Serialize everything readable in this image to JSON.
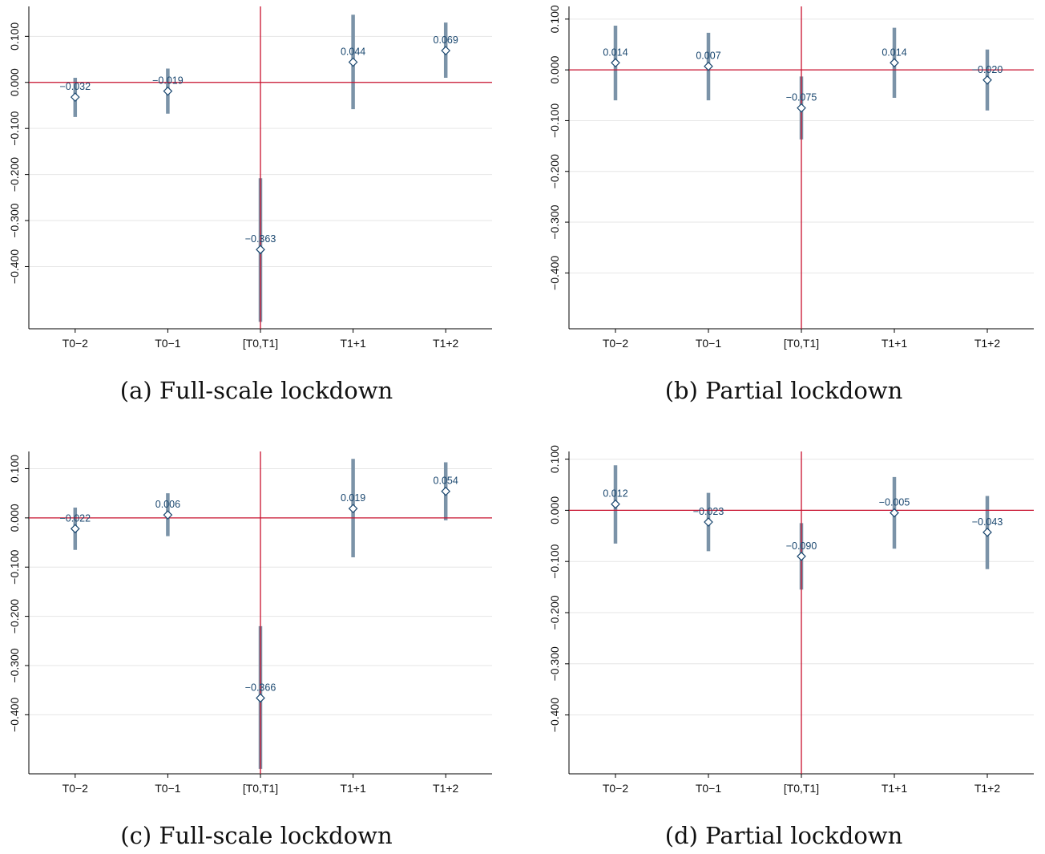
{
  "colors": {
    "ci": "#7b93a8",
    "reference": "#c8102e",
    "label": "#1a476f",
    "grid": "#e6e6e6",
    "axis": "#000000",
    "marker_fill": "#ffffff",
    "marker_stroke": "#1a476f"
  },
  "chart_data": [
    {
      "type": "scatter",
      "caption": "(a) Full-scale lockdown",
      "categories": [
        "T0−2",
        "T0−1",
        "[T0,T1]",
        "T1+1",
        "T1+2"
      ],
      "values": [
        -0.032,
        -0.019,
        -0.363,
        0.044,
        0.069
      ],
      "value_labels": [
        "−0.032",
        "−0.019",
        "−0.363",
        "0.044",
        "0.069"
      ],
      "ci_low": [
        -0.075,
        -0.068,
        -0.52,
        -0.058,
        0.01
      ],
      "ci_high": [
        0.01,
        0.03,
        -0.208,
        0.147,
        0.13
      ],
      "yticks": [
        0.1,
        0.0,
        -0.1,
        -0.2,
        -0.3,
        -0.4
      ],
      "ytick_labels": [
        "0.100",
        "0.000",
        "−0.100",
        "−0.200",
        "−0.300",
        "−0.400"
      ],
      "ylim": [
        -0.535,
        0.165
      ],
      "reference_y": 0,
      "reference_x_category": "[T0,T1]",
      "grid": true
    },
    {
      "type": "scatter",
      "caption": "(b) Partial lockdown",
      "categories": [
        "T0−2",
        "T0−1",
        "[T0,T1]",
        "T1+1",
        "T1+2"
      ],
      "values": [
        0.014,
        0.007,
        -0.075,
        0.014,
        -0.02
      ],
      "value_labels": [
        "0.014",
        "0.007",
        "−0.075",
        "0.014",
        "−0.020"
      ],
      "ci_low": [
        -0.06,
        -0.06,
        -0.137,
        -0.055,
        -0.08
      ],
      "ci_high": [
        0.087,
        0.073,
        -0.013,
        0.083,
        0.04
      ],
      "yticks": [
        0.1,
        0.0,
        -0.1,
        -0.2,
        -0.3,
        -0.4
      ],
      "ytick_labels": [
        "0.100",
        "0.000",
        "−0.100",
        "−0.200",
        "−0.300",
        "−0.400"
      ],
      "ylim": [
        -0.51,
        0.125
      ],
      "reference_y": 0,
      "reference_x_category": "[T0,T1]",
      "grid": true
    },
    {
      "type": "scatter",
      "caption": "(c) Full-scale lockdown",
      "categories": [
        "T0−2",
        "T0−1",
        "[T0,T1]",
        "T1+1",
        "T1+2"
      ],
      "values": [
        -0.022,
        0.006,
        -0.366,
        0.019,
        0.054
      ],
      "value_labels": [
        "−0.022",
        "0.006",
        "−0.366",
        "0.019",
        "0.054"
      ],
      "ci_low": [
        -0.065,
        -0.037,
        -0.51,
        -0.08,
        -0.005
      ],
      "ci_high": [
        0.021,
        0.05,
        -0.22,
        0.12,
        0.113
      ],
      "yticks": [
        0.1,
        0.0,
        -0.1,
        -0.2,
        -0.3,
        -0.4
      ],
      "ytick_labels": [
        "0.100",
        "0.000",
        "−0.100",
        "−0.200",
        "−0.300",
        "−0.400"
      ],
      "ylim": [
        -0.52,
        0.135
      ],
      "reference_y": 0,
      "reference_x_category": "[T0,T1]",
      "grid": true
    },
    {
      "type": "scatter",
      "caption": "(d) Partial lockdown",
      "categories": [
        "T0−2",
        "T0−1",
        "[T0,T1]",
        "T1+1",
        "T1+2"
      ],
      "values": [
        0.012,
        -0.023,
        -0.09,
        -0.005,
        -0.043
      ],
      "value_labels": [
        "0.012",
        "−0.023",
        "−0.090",
        "−0.005",
        "−0.043"
      ],
      "ci_low": [
        -0.065,
        -0.08,
        -0.155,
        -0.075,
        -0.115
      ],
      "ci_high": [
        0.088,
        0.034,
        -0.025,
        0.065,
        0.028
      ],
      "yticks": [
        0.1,
        0.0,
        -0.1,
        -0.2,
        -0.3,
        -0.4
      ],
      "ytick_labels": [
        "0.100",
        "0.000",
        "−0.100",
        "−0.200",
        "−0.300",
        "−0.400"
      ],
      "ylim": [
        -0.515,
        0.115
      ],
      "reference_y": 0,
      "reference_x_category": "[T0,T1]",
      "grid": true
    }
  ]
}
